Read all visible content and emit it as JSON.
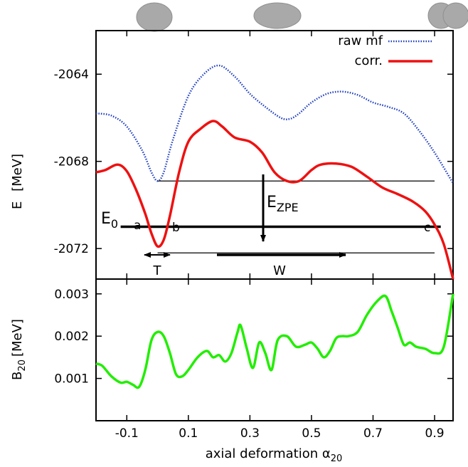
{
  "chart_data": [
    {
      "type": "line",
      "ylabel_main": "E",
      "ylabel_unit": "[MeV]",
      "xlim": [
        -0.2,
        0.96
      ],
      "ylim": [
        -2073.4,
        -2062.0
      ],
      "yticks": [
        -2064,
        -2068,
        -2072
      ],
      "ytick_labels": [
        "-2064",
        "-2068",
        "-2072"
      ],
      "legend_position": "top-right",
      "series": [
        {
          "name": "raw mf",
          "style": "dotted",
          "color": "#1f3fbf",
          "x": [
            -0.2,
            -0.15,
            -0.1,
            -0.05,
            -0.02,
            0.0,
            0.02,
            0.05,
            0.1,
            0.15,
            0.2,
            0.25,
            0.3,
            0.35,
            0.4,
            0.43,
            0.46,
            0.5,
            0.55,
            0.6,
            0.65,
            0.7,
            0.75,
            0.8,
            0.85,
            0.9,
            0.96
          ],
          "y": [
            -2065.8,
            -2065.9,
            -2066.4,
            -2067.5,
            -2068.5,
            -2068.9,
            -2068.5,
            -2067.0,
            -2065.0,
            -2064.0,
            -2063.6,
            -2064.1,
            -2064.9,
            -2065.5,
            -2066.0,
            -2066.05,
            -2065.8,
            -2065.3,
            -2064.9,
            -2064.8,
            -2064.95,
            -2065.3,
            -2065.5,
            -2065.8,
            -2066.6,
            -2067.6,
            -2069.0
          ]
        },
        {
          "name": "corr.",
          "style": "solid",
          "color": "#ee1111",
          "x": [
            -0.2,
            -0.17,
            -0.13,
            -0.1,
            -0.07,
            -0.04,
            -0.02,
            0.0,
            0.02,
            0.04,
            0.07,
            0.1,
            0.14,
            0.18,
            0.21,
            0.25,
            0.3,
            0.34,
            0.38,
            0.42,
            0.46,
            0.5,
            0.53,
            0.58,
            0.63,
            0.68,
            0.73,
            0.78,
            0.83,
            0.87,
            0.9,
            0.93,
            0.96
          ],
          "y": [
            -2068.5,
            -2068.4,
            -2068.15,
            -2068.45,
            -2069.3,
            -2070.4,
            -2071.3,
            -2071.9,
            -2071.6,
            -2070.5,
            -2068.5,
            -2067.1,
            -2066.5,
            -2066.15,
            -2066.4,
            -2066.9,
            -2067.1,
            -2067.6,
            -2068.5,
            -2068.9,
            -2068.9,
            -2068.4,
            -2068.15,
            -2068.1,
            -2068.25,
            -2068.7,
            -2069.2,
            -2069.5,
            -2069.85,
            -2070.3,
            -2070.9,
            -2071.8,
            -2073.4
          ]
        }
      ],
      "reference_lines": [
        {
          "name": "upper",
          "y": -2068.9,
          "x_from": 0.0,
          "x_to": 0.9,
          "weight": "thin"
        },
        {
          "name": "E0",
          "y": -2071.0,
          "x_from": -0.12,
          "x_to": 0.92,
          "weight": "thick"
        },
        {
          "name": "lower",
          "y": -2072.2,
          "x_from": 0.0,
          "x_to": 0.9,
          "weight": "thin"
        }
      ],
      "annotations": {
        "E0_base": "E",
        "E0_sub": "0",
        "a": "a",
        "b": "b",
        "c": "c",
        "ezpe_base": "E",
        "ezpe_sub": "ZPE",
        "T": "T",
        "W": "W"
      },
      "shapes_top": [
        "spherical-shape",
        "deformed-shape",
        "fission-fragments-shape"
      ]
    },
    {
      "type": "line",
      "ylabel_base": "B",
      "ylabel_sub": "20",
      "ylabel_unit": "[MeV]",
      "xlabel_text": "axial deformation α",
      "xlabel_sub": "20",
      "xlim": [
        -0.2,
        0.96
      ],
      "ylim": [
        0.0,
        0.00335
      ],
      "yticks": [
        0.001,
        0.002,
        0.003
      ],
      "ytick_labels": [
        "0.001",
        "0.002",
        "0.003"
      ],
      "xticks": [
        -0.1,
        0.1,
        0.3,
        0.5,
        0.7,
        0.9
      ],
      "xtick_labels": [
        "-0.1",
        "0.1",
        "0.3",
        "0.5",
        "0.7",
        "0.9"
      ],
      "series": [
        {
          "color": "#22ee00",
          "x": [
            -0.2,
            -0.18,
            -0.15,
            -0.12,
            -0.1,
            -0.08,
            -0.06,
            -0.04,
            -0.02,
            0.0,
            0.02,
            0.04,
            0.06,
            0.08,
            0.1,
            0.13,
            0.16,
            0.18,
            0.2,
            0.22,
            0.24,
            0.26,
            0.27,
            0.29,
            0.31,
            0.33,
            0.35,
            0.37,
            0.39,
            0.42,
            0.45,
            0.48,
            0.5,
            0.52,
            0.54,
            0.56,
            0.58,
            0.6,
            0.62,
            0.65,
            0.68,
            0.71,
            0.74,
            0.76,
            0.78,
            0.8,
            0.82,
            0.84,
            0.87,
            0.9,
            0.93,
            0.96
          ],
          "y": [
            0.00135,
            0.0013,
            0.00105,
            0.0009,
            0.00092,
            0.00085,
            0.0008,
            0.0012,
            0.0019,
            0.0021,
            0.002,
            0.0016,
            0.0011,
            0.00105,
            0.0012,
            0.0015,
            0.00165,
            0.0015,
            0.00155,
            0.0014,
            0.0016,
            0.0021,
            0.00225,
            0.0017,
            0.00125,
            0.00185,
            0.0016,
            0.0012,
            0.0019,
            0.002,
            0.00175,
            0.0018,
            0.00185,
            0.0017,
            0.0015,
            0.00165,
            0.00195,
            0.002,
            0.002,
            0.0021,
            0.0025,
            0.0028,
            0.00295,
            0.0026,
            0.0022,
            0.0018,
            0.00185,
            0.00175,
            0.0017,
            0.0016,
            0.00175,
            0.003
          ]
        }
      ]
    }
  ]
}
